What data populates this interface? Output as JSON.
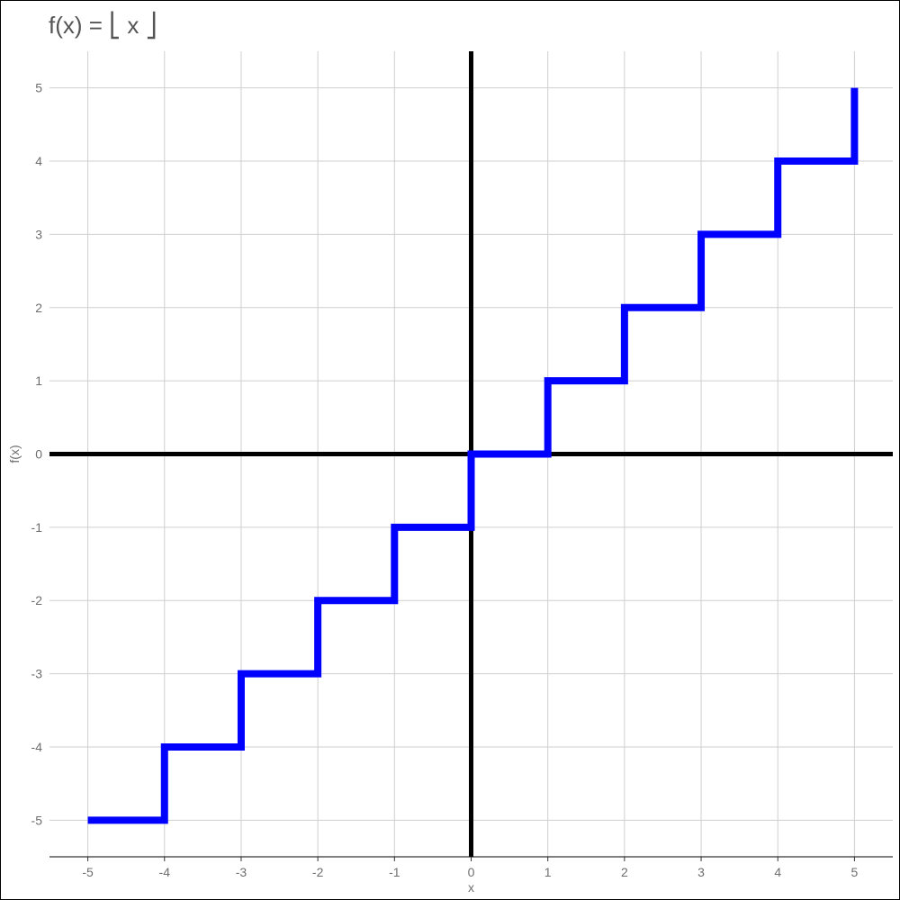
{
  "chart_data": {
    "type": "line",
    "title": "f(x) = ⎣ x ⎦",
    "xlabel": "x",
    "ylabel": "f(x)",
    "xlim": [
      -5.5,
      5.5
    ],
    "ylim": [
      -5.5,
      5.5
    ],
    "x_ticks": [
      -5,
      -4,
      -3,
      -2,
      -1,
      0,
      1,
      2,
      3,
      4,
      5
    ],
    "y_ticks": [
      -5,
      -4,
      -3,
      -2,
      -1,
      0,
      1,
      2,
      3,
      4,
      5
    ],
    "grid": true,
    "reference_lines": {
      "x": 0,
      "y": 0,
      "color": "#000000"
    },
    "series": [
      {
        "color": "#0000ff",
        "x": [
          -5,
          -4,
          -4,
          -3,
          -3,
          -2,
          -2,
          -1,
          -1,
          0,
          0,
          1,
          1,
          2,
          2,
          3,
          3,
          4,
          4,
          5,
          5
        ],
        "y": [
          -5,
          -5,
          -4,
          -4,
          -3,
          -3,
          -2,
          -2,
          -1,
          -1,
          0,
          0,
          1,
          1,
          2,
          2,
          3,
          3,
          4,
          4,
          5
        ]
      }
    ]
  }
}
